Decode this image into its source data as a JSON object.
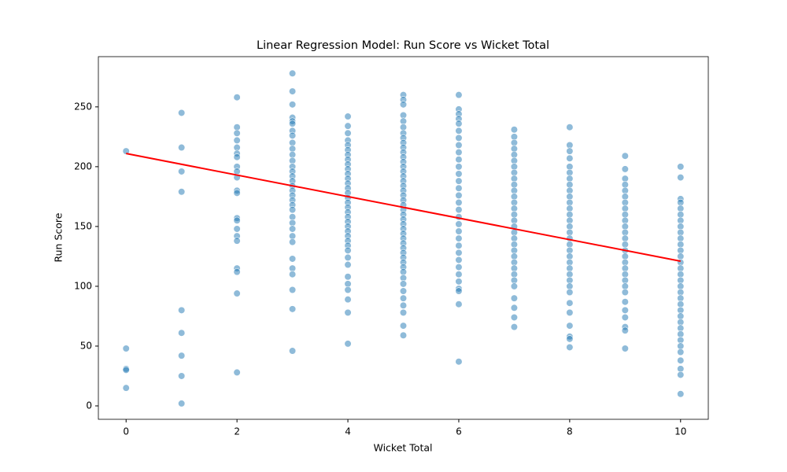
{
  "chart_data": {
    "type": "scatter",
    "title": "Linear Regression Model: Run Score vs Wicket Total",
    "x_label": "Wicket Total",
    "y_label": "Run Score",
    "xlim": [
      -0.5,
      10.5
    ],
    "ylim": [
      -11.2,
      292
    ],
    "xticks": [
      0,
      2,
      4,
      6,
      8,
      10
    ],
    "yticks": [
      0,
      50,
      100,
      150,
      200,
      250
    ],
    "point_color": "#1f77b4",
    "groups": [
      {
        "x": 0,
        "values": [
          213,
          48,
          31,
          30,
          15
        ]
      },
      {
        "x": 1,
        "values": [
          245,
          216,
          196,
          179,
          80,
          61,
          42,
          25,
          2
        ]
      },
      {
        "x": 2,
        "values": [
          258,
          233,
          228,
          222,
          216,
          211,
          208,
          200,
          196,
          191,
          180,
          178,
          157,
          155,
          148,
          142,
          138,
          115,
          112,
          94,
          28
        ]
      },
      {
        "x": 3,
        "values": [
          278,
          263,
          252,
          241,
          238,
          236,
          230,
          226,
          220,
          215,
          210,
          205,
          200,
          196,
          192,
          188,
          184,
          180,
          176,
          172,
          168,
          164,
          158,
          153,
          148,
          142,
          137,
          123,
          115,
          110,
          97,
          81,
          46
        ]
      },
      {
        "x": 4,
        "values": [
          242,
          234,
          228,
          222,
          218,
          214,
          210,
          206,
          202,
          198,
          194,
          190,
          186,
          182,
          178,
          174,
          170,
          166,
          162,
          158,
          154,
          150,
          146,
          142,
          138,
          134,
          130,
          124,
          118,
          108,
          102,
          97,
          89,
          78,
          52
        ]
      },
      {
        "x": 5,
        "values": [
          260,
          256,
          252,
          243,
          238,
          233,
          228,
          224,
          220,
          216,
          212,
          208,
          204,
          200,
          196,
          192,
          188,
          184,
          180,
          176,
          172,
          168,
          164,
          160,
          156,
          152,
          148,
          144,
          140,
          136,
          132,
          128,
          124,
          120,
          116,
          112,
          107,
          102,
          96,
          90,
          84,
          78,
          67,
          59
        ]
      },
      {
        "x": 6,
        "values": [
          260,
          248,
          244,
          240,
          236,
          230,
          224,
          218,
          212,
          206,
          200,
          194,
          188,
          182,
          176,
          170,
          164,
          158,
          152,
          146,
          140,
          134,
          128,
          122,
          116,
          110,
          104,
          98,
          96,
          85,
          37
        ]
      },
      {
        "x": 7,
        "values": [
          231,
          225,
          220,
          215,
          210,
          205,
          200,
          195,
          190,
          185,
          180,
          175,
          170,
          165,
          160,
          155,
          150,
          145,
          140,
          135,
          130,
          125,
          120,
          115,
          110,
          105,
          100,
          90,
          82,
          74,
          66
        ]
      },
      {
        "x": 8,
        "values": [
          233,
          218,
          213,
          207,
          200,
          195,
          190,
          185,
          180,
          175,
          170,
          165,
          160,
          155,
          150,
          145,
          140,
          135,
          130,
          125,
          120,
          115,
          110,
          105,
          100,
          95,
          86,
          78,
          67,
          58,
          56,
          49
        ]
      },
      {
        "x": 9,
        "values": [
          209,
          198,
          190,
          185,
          180,
          175,
          170,
          165,
          160,
          155,
          150,
          145,
          140,
          135,
          130,
          125,
          120,
          115,
          110,
          105,
          100,
          95,
          87,
          80,
          74,
          66,
          63,
          48
        ]
      },
      {
        "x": 10,
        "values": [
          200,
          191,
          173,
          170,
          165,
          160,
          155,
          150,
          145,
          140,
          135,
          130,
          125,
          120,
          115,
          110,
          105,
          100,
          95,
          90,
          85,
          80,
          75,
          70,
          65,
          60,
          55,
          50,
          45,
          38,
          31,
          26,
          10
        ]
      }
    ],
    "regression": {
      "color": "#ff0000",
      "x": [
        0,
        10
      ],
      "values": [
        211,
        121
      ]
    }
  }
}
